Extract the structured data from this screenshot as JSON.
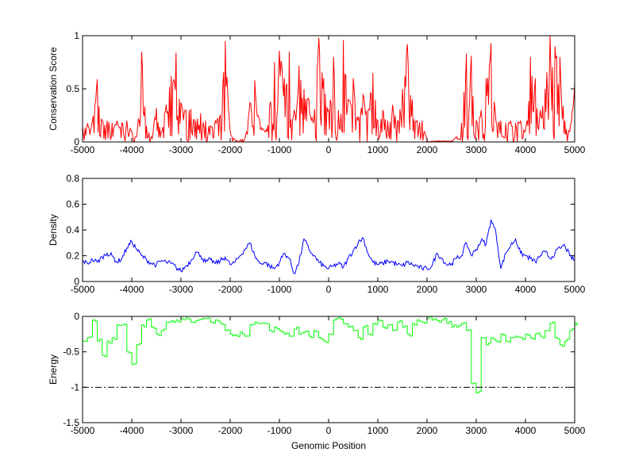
{
  "chart_data": [
    {
      "type": "line",
      "title": "",
      "xlabel": "",
      "ylabel": "Conservation Score",
      "xlim": [
        -5000,
        5000
      ],
      "ylim": [
        0,
        1
      ],
      "xticks": [
        "-5000",
        "-4000",
        "-3000",
        "-2000",
        "-1000",
        "0",
        "1000",
        "2000",
        "3000",
        "4000",
        "5000"
      ],
      "yticks": [
        "0",
        "0.5",
        "1"
      ],
      "ytick_values": [
        0,
        0.5,
        1
      ],
      "color": "#ff0000",
      "x_start": -5000,
      "x_step": 100,
      "values": [
        0.15,
        0.17,
        0.2,
        0.59,
        0.2,
        0.2,
        0.18,
        0.2,
        0.18,
        0.2,
        0.1,
        0.05,
        0.85,
        0.15,
        0.05,
        0.32,
        0.1,
        0.35,
        0.62,
        0.84,
        0.37,
        0.3,
        0.31,
        0.2,
        0.27,
        0.2,
        0.15,
        0.2,
        0.25,
        0.95,
        0.1,
        0.02,
        0.02,
        0.03,
        0.37,
        0.58,
        0.2,
        0.1,
        0.33,
        0.75,
        0.86,
        0.6,
        0.85,
        0.3,
        0.72,
        0.5,
        0.4,
        0.2,
        0.98,
        0.6,
        0.3,
        0.8,
        0.3,
        0.96,
        0.4,
        0.6,
        0.2,
        0.45,
        0.3,
        0.65,
        0.2,
        0.3,
        0.2,
        0.35,
        0.2,
        0.5,
        0.92,
        0.4,
        0.2,
        0.2,
        0.02,
        0.01,
        0.01,
        0.01,
        0.01,
        0.01,
        0.05,
        0.18,
        0.83,
        0.81,
        0.2,
        0.3,
        0.6,
        0.93,
        0.2,
        0.2,
        0.18,
        0.2,
        0.18,
        0.2,
        0.1,
        0.8,
        0.6,
        0.3,
        0.5,
        1.0,
        0.9,
        0.8,
        0.2,
        0.1,
        0.55
      ]
    },
    {
      "type": "line",
      "title": "",
      "xlabel": "",
      "ylabel": "Density",
      "xlim": [
        -5000,
        5000
      ],
      "ylim": [
        0,
        0.8
      ],
      "xticks": [
        "-5000",
        "-4000",
        "-3000",
        "-2000",
        "-1000",
        "0",
        "1000",
        "2000",
        "3000",
        "4000",
        "5000"
      ],
      "yticks": [
        "0",
        "0.2",
        "0.4",
        "0.6",
        "0.8"
      ],
      "ytick_values": [
        0,
        0.2,
        0.4,
        0.6,
        0.8
      ],
      "color": "#0000ff",
      "x_start": -5000,
      "x_step": 100,
      "values": [
        0.16,
        0.14,
        0.17,
        0.15,
        0.19,
        0.22,
        0.2,
        0.15,
        0.18,
        0.26,
        0.31,
        0.25,
        0.2,
        0.17,
        0.14,
        0.13,
        0.16,
        0.15,
        0.14,
        0.11,
        0.08,
        0.12,
        0.16,
        0.23,
        0.2,
        0.15,
        0.17,
        0.14,
        0.16,
        0.19,
        0.13,
        0.15,
        0.2,
        0.25,
        0.3,
        0.2,
        0.14,
        0.15,
        0.12,
        0.1,
        0.15,
        0.22,
        0.18,
        0.06,
        0.15,
        0.33,
        0.25,
        0.2,
        0.15,
        0.12,
        0.1,
        0.12,
        0.14,
        0.11,
        0.18,
        0.24,
        0.3,
        0.34,
        0.22,
        0.15,
        0.13,
        0.14,
        0.16,
        0.15,
        0.13,
        0.12,
        0.15,
        0.13,
        0.12,
        0.1,
        0.1,
        0.12,
        0.22,
        0.18,
        0.13,
        0.14,
        0.18,
        0.2,
        0.3,
        0.2,
        0.25,
        0.32,
        0.29,
        0.48,
        0.38,
        0.1,
        0.22,
        0.28,
        0.33,
        0.22,
        0.2,
        0.18,
        0.15,
        0.2,
        0.23,
        0.18,
        0.22,
        0.26,
        0.28,
        0.2,
        0.16
      ]
    },
    {
      "type": "line",
      "title": "",
      "xlabel": "Genomic Position",
      "ylabel": "Energy",
      "xlim": [
        -5000,
        5000
      ],
      "ylim": [
        -1.5,
        0
      ],
      "xticks": [
        "-5000",
        "-4000",
        "-3000",
        "-2000",
        "-1000",
        "0",
        "1000",
        "2000",
        "3000",
        "4000",
        "5000"
      ],
      "yticks": [
        "-1.5",
        "-1",
        "-0.5",
        "0"
      ],
      "ytick_values": [
        -1.5,
        -1,
        -0.5,
        0
      ],
      "color": "#00ff00",
      "threshold": -1,
      "x_start": -5000,
      "x_step": 100,
      "values": [
        -0.35,
        -0.3,
        -0.05,
        -0.35,
        -0.55,
        -0.35,
        -0.3,
        -0.12,
        -0.12,
        -0.5,
        -0.68,
        -0.4,
        -0.12,
        -0.05,
        -0.15,
        -0.25,
        -0.2,
        -0.08,
        -0.06,
        -0.05,
        -0.03,
        -0.02,
        -0.08,
        -0.06,
        -0.04,
        -0.03,
        -0.08,
        -0.05,
        -0.1,
        -0.2,
        -0.25,
        -0.26,
        -0.22,
        -0.28,
        -0.12,
        -0.08,
        -0.1,
        -0.1,
        -0.2,
        -0.15,
        -0.2,
        -0.25,
        -0.28,
        -0.18,
        -0.25,
        -0.22,
        -0.28,
        -0.2,
        -0.3,
        -0.35,
        -0.25,
        -0.05,
        -0.02,
        -0.1,
        -0.15,
        -0.2,
        -0.3,
        -0.15,
        -0.25,
        -0.1,
        -0.05,
        -0.15,
        -0.12,
        -0.2,
        -0.08,
        -0.15,
        -0.25,
        -0.1,
        -0.05,
        -0.08,
        -0.03,
        -0.05,
        -0.06,
        -0.05,
        -0.1,
        -0.15,
        -0.15,
        -0.1,
        -0.2,
        -0.95,
        -1.08,
        -0.3,
        -0.4,
        -0.3,
        -0.35,
        -0.25,
        -0.35,
        -0.3,
        -0.28,
        -0.3,
        -0.25,
        -0.3,
        -0.25,
        -0.28,
        -0.2,
        -0.1,
        -0.3,
        -0.4,
        -0.35,
        -0.2,
        -0.12
      ]
    }
  ]
}
